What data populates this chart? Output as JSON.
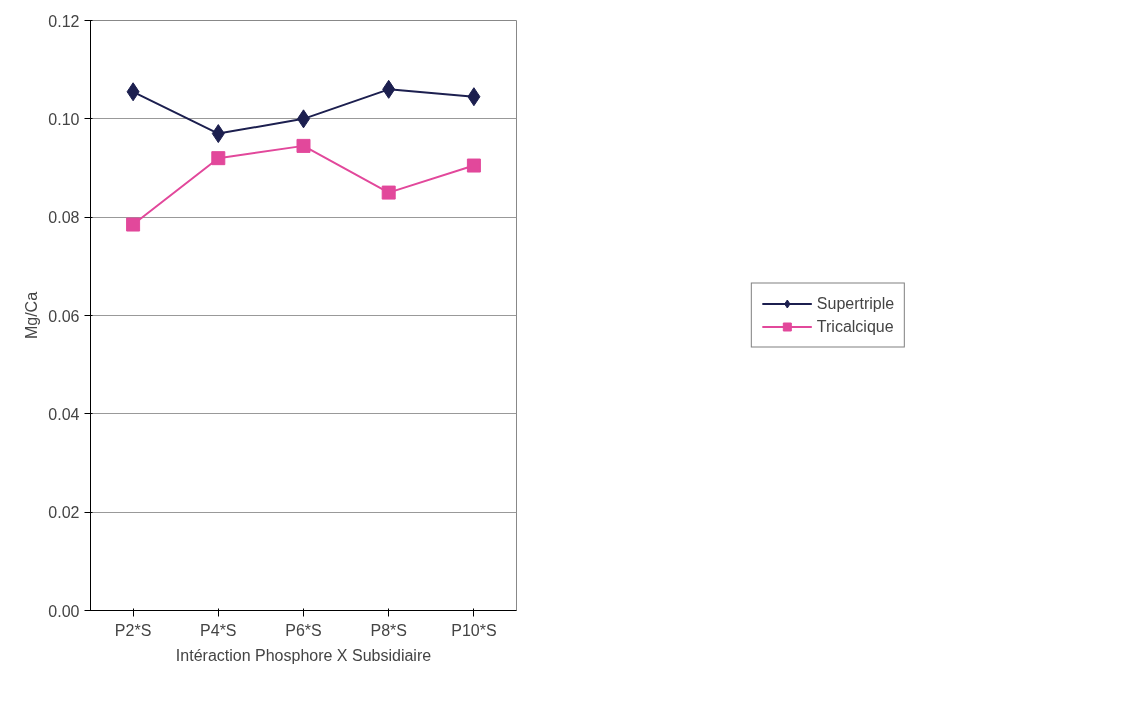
{
  "chart_data": {
    "type": "line",
    "xlabel": "Intéraction Phosphore X Subsidiaire",
    "ylabel": "Mg/Ca",
    "categories": [
      "P2*S",
      "P4*S",
      "P6*S",
      "P8*S",
      "P10*S"
    ],
    "series": [
      {
        "name": "Supertriple",
        "color": "#1c1f4f",
        "marker": "diamond",
        "values": [
          0.1055,
          0.097,
          0.1,
          0.106,
          0.1045
        ]
      },
      {
        "name": "Tricalcique",
        "color": "#e2489b",
        "marker": "square",
        "values": [
          0.0785,
          0.092,
          0.0945,
          0.085,
          0.0905
        ]
      }
    ],
    "ylim": [
      0,
      0.12
    ],
    "yticks": [
      {
        "value": 0,
        "label": "0.00"
      },
      {
        "value": 0.02,
        "label": "0.02"
      },
      {
        "value": 0.04,
        "label": "0.04"
      },
      {
        "value": 0.06,
        "label": "0.06"
      },
      {
        "value": 0.08,
        "label": "0.08"
      },
      {
        "value": 0.1,
        "label": "0.10"
      },
      {
        "value": 0.12,
        "label": "0.12"
      }
    ],
    "grid": "y",
    "legend": "right",
    "line_style": "solid"
  }
}
